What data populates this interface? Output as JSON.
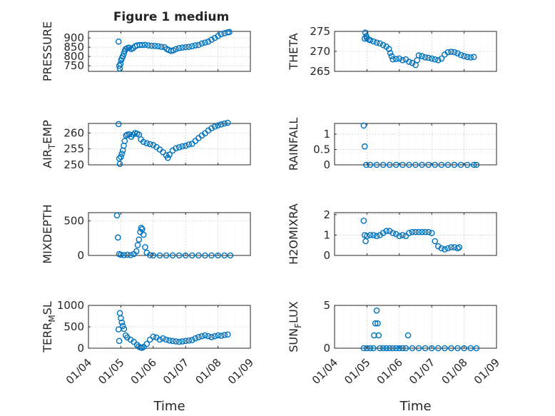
{
  "figure": {
    "title": "Figure 1 medium"
  },
  "chart_data": [
    {
      "type": "scatter",
      "id": "pressure",
      "ylabel": "PRESSURE",
      "xlabel": "",
      "yticks": [
        750,
        800,
        850,
        900
      ],
      "ylim": [
        720,
        935
      ],
      "xlim": [
        0,
        5
      ],
      "xticks": [
        0,
        1,
        2,
        3,
        4,
        5
      ],
      "points": [
        [
          0.93,
          880
        ],
        [
          0.95,
          750
        ],
        [
          0.97,
          735
        ],
        [
          0.99,
          760
        ],
        [
          1.01,
          780
        ],
        [
          1.03,
          790
        ],
        [
          1.06,
          800
        ],
        [
          1.09,
          815
        ],
        [
          1.12,
          830
        ],
        [
          1.15,
          840
        ],
        [
          1.2,
          845
        ],
        [
          1.26,
          848
        ],
        [
          1.32,
          840
        ],
        [
          1.38,
          845
        ],
        [
          1.44,
          855
        ],
        [
          1.5,
          860
        ],
        [
          1.58,
          862
        ],
        [
          1.66,
          862
        ],
        [
          1.75,
          863
        ],
        [
          1.85,
          860
        ],
        [
          1.95,
          858
        ],
        [
          2.05,
          857
        ],
        [
          2.15,
          855
        ],
        [
          2.25,
          852
        ],
        [
          2.35,
          850
        ],
        [
          2.42,
          840
        ],
        [
          2.48,
          835
        ],
        [
          2.55,
          830
        ],
        [
          2.62,
          833
        ],
        [
          2.7,
          840
        ],
        [
          2.8,
          845
        ],
        [
          2.9,
          848
        ],
        [
          3.0,
          850
        ],
        [
          3.1,
          852
        ],
        [
          3.2,
          855
        ],
        [
          3.3,
          860
        ],
        [
          3.4,
          862
        ],
        [
          3.5,
          870
        ],
        [
          3.6,
          875
        ],
        [
          3.7,
          880
        ],
        [
          3.8,
          890
        ],
        [
          3.9,
          900
        ],
        [
          4.0,
          910
        ],
        [
          4.1,
          920
        ],
        [
          4.2,
          925
        ],
        [
          4.3,
          930
        ],
        [
          4.35,
          932
        ]
      ]
    },
    {
      "type": "scatter",
      "id": "theta",
      "ylabel": "THETA",
      "xlabel": "",
      "yticks": [
        265,
        270,
        275
      ],
      "ylim": [
        265,
        275
      ],
      "xlim": [
        0,
        5
      ],
      "xticks": [
        0,
        1,
        2,
        3,
        4,
        5
      ],
      "points": [
        [
          0.93,
          273.2
        ],
        [
          0.95,
          274.7
        ],
        [
          0.98,
          273.8
        ],
        [
          1.0,
          273.3
        ],
        [
          1.05,
          273.0
        ],
        [
          1.1,
          272.8
        ],
        [
          1.2,
          272.5
        ],
        [
          1.3,
          272.2
        ],
        [
          1.4,
          272.0
        ],
        [
          1.5,
          271.6
        ],
        [
          1.6,
          271.2
        ],
        [
          1.68,
          270.6
        ],
        [
          1.72,
          269.6
        ],
        [
          1.76,
          268.8
        ],
        [
          1.8,
          268.0
        ],
        [
          1.9,
          268.1
        ],
        [
          2.0,
          268.2
        ],
        [
          2.1,
          267.8
        ],
        [
          2.2,
          268.0
        ],
        [
          2.3,
          267.4
        ],
        [
          2.4,
          267.1
        ],
        [
          2.5,
          266.6
        ],
        [
          2.55,
          267.8
        ],
        [
          2.6,
          269.0
        ],
        [
          2.7,
          268.8
        ],
        [
          2.8,
          268.5
        ],
        [
          2.9,
          268.4
        ],
        [
          3.0,
          268.2
        ],
        [
          3.1,
          268.0
        ],
        [
          3.2,
          267.8
        ],
        [
          3.3,
          268.2
        ],
        [
          3.4,
          269.2
        ],
        [
          3.5,
          269.8
        ],
        [
          3.6,
          269.9
        ],
        [
          3.7,
          269.8
        ],
        [
          3.8,
          269.5
        ],
        [
          3.9,
          269.1
        ],
        [
          4.0,
          268.8
        ],
        [
          4.1,
          268.6
        ],
        [
          4.2,
          268.5
        ],
        [
          4.3,
          268.6
        ]
      ]
    },
    {
      "type": "scatter",
      "id": "air_temp",
      "ylabel": "AIR_TEMP",
      "ylabel_main": "AIR",
      "ylabel_sub": "T",
      "ylabel_tail": "EMP",
      "xlabel": "",
      "yticks": [
        250,
        255,
        260
      ],
      "ylim": [
        250,
        263
      ],
      "xlim": [
        0,
        5
      ],
      "xticks": [
        0,
        1,
        2,
        3,
        4,
        5
      ],
      "points": [
        [
          0.93,
          262.8
        ],
        [
          0.95,
          252.0
        ],
        [
          0.97,
          250.3
        ],
        [
          1.0,
          252.5
        ],
        [
          1.03,
          253.5
        ],
        [
          1.06,
          254.5
        ],
        [
          1.09,
          256.0
        ],
        [
          1.12,
          257.5
        ],
        [
          1.16,
          259.2
        ],
        [
          1.2,
          259.5
        ],
        [
          1.26,
          259.6
        ],
        [
          1.32,
          258.8
        ],
        [
          1.38,
          259.5
        ],
        [
          1.44,
          260.0
        ],
        [
          1.5,
          259.8
        ],
        [
          1.56,
          259.5
        ],
        [
          1.62,
          258.0
        ],
        [
          1.7,
          257.2
        ],
        [
          1.8,
          256.8
        ],
        [
          1.9,
          256.5
        ],
        [
          2.0,
          256.2
        ],
        [
          2.1,
          255.6
        ],
        [
          2.2,
          254.8
        ],
        [
          2.3,
          254.0
        ],
        [
          2.4,
          253.0
        ],
        [
          2.45,
          252.2
        ],
        [
          2.5,
          253.2
        ],
        [
          2.6,
          254.5
        ],
        [
          2.7,
          255.2
        ],
        [
          2.8,
          255.5
        ],
        [
          2.9,
          255.8
        ],
        [
          3.0,
          256.0
        ],
        [
          3.1,
          256.4
        ],
        [
          3.2,
          256.6
        ],
        [
          3.3,
          257.5
        ],
        [
          3.4,
          258.4
        ],
        [
          3.5,
          259.2
        ],
        [
          3.6,
          259.9
        ],
        [
          3.7,
          260.8
        ],
        [
          3.8,
          261.5
        ],
        [
          3.9,
          262.0
        ],
        [
          4.0,
          262.4
        ],
        [
          4.1,
          262.7
        ],
        [
          4.2,
          263.0
        ],
        [
          4.3,
          263.2
        ]
      ]
    },
    {
      "type": "scatter",
      "id": "rainfall",
      "ylabel": "RAINFALL",
      "xlabel": "",
      "yticks": [
        0,
        0.5,
        1
      ],
      "ylim": [
        0,
        1.35
      ],
      "xlim": [
        0,
        5
      ],
      "xticks": [
        0,
        1,
        2,
        3,
        4,
        5
      ],
      "points": [
        [
          0.9,
          1.28
        ],
        [
          0.93,
          0.6
        ],
        [
          0.98,
          0
        ],
        [
          1.1,
          0
        ],
        [
          1.3,
          0
        ],
        [
          1.5,
          0
        ],
        [
          1.7,
          0
        ],
        [
          1.9,
          0
        ],
        [
          2.1,
          0
        ],
        [
          2.3,
          0
        ],
        [
          2.5,
          0
        ],
        [
          2.7,
          0
        ],
        [
          2.9,
          0
        ],
        [
          3.1,
          0
        ],
        [
          3.3,
          0
        ],
        [
          3.5,
          0
        ],
        [
          3.7,
          0
        ],
        [
          3.9,
          0
        ],
        [
          4.1,
          0
        ],
        [
          4.3,
          0
        ],
        [
          4.38,
          0
        ]
      ]
    },
    {
      "type": "scatter",
      "id": "mixdepth",
      "ylabel": "MIXDEPTH",
      "xlabel": "",
      "yticks": [
        0,
        500
      ],
      "ylim": [
        0,
        620
      ],
      "xlim": [
        0,
        5
      ],
      "xticks": [
        0,
        1,
        2,
        3,
        4,
        5
      ],
      "points": [
        [
          0.88,
          580
        ],
        [
          0.91,
          260
        ],
        [
          0.95,
          20
        ],
        [
          1.0,
          10
        ],
        [
          1.1,
          5
        ],
        [
          1.2,
          10
        ],
        [
          1.3,
          5
        ],
        [
          1.4,
          20
        ],
        [
          1.48,
          60
        ],
        [
          1.52,
          150
        ],
        [
          1.56,
          230
        ],
        [
          1.6,
          340
        ],
        [
          1.63,
          400
        ],
        [
          1.66,
          380
        ],
        [
          1.7,
          300
        ],
        [
          1.75,
          120
        ],
        [
          1.8,
          40
        ],
        [
          1.9,
          5
        ],
        [
          2.0,
          0
        ],
        [
          2.2,
          0
        ],
        [
          2.4,
          0
        ],
        [
          2.6,
          0
        ],
        [
          2.8,
          0
        ],
        [
          3.0,
          0
        ],
        [
          3.2,
          0
        ],
        [
          3.4,
          0
        ],
        [
          3.6,
          0
        ],
        [
          3.8,
          0
        ],
        [
          4.0,
          0
        ],
        [
          4.2,
          0
        ],
        [
          4.38,
          0
        ]
      ]
    },
    {
      "type": "scatter",
      "id": "h2omixra",
      "ylabel": "H2OMIXRA",
      "xlabel": "",
      "yticks": [
        0,
        1,
        2
      ],
      "ylim": [
        0,
        2.1
      ],
      "xlim": [
        0,
        5
      ],
      "xticks": [
        0,
        1,
        2,
        3,
        4,
        5
      ],
      "points": [
        [
          0.9,
          1.7
        ],
        [
          0.93,
          1.0
        ],
        [
          0.96,
          0.7
        ],
        [
          1.0,
          0.95
        ],
        [
          1.1,
          1.0
        ],
        [
          1.2,
          1.0
        ],
        [
          1.3,
          0.95
        ],
        [
          1.4,
          1.0
        ],
        [
          1.5,
          1.1
        ],
        [
          1.6,
          1.2
        ],
        [
          1.7,
          1.2
        ],
        [
          1.8,
          1.1
        ],
        [
          1.9,
          1.05
        ],
        [
          2.0,
          0.95
        ],
        [
          2.1,
          1.0
        ],
        [
          2.2,
          0.95
        ],
        [
          2.3,
          1.1
        ],
        [
          2.4,
          1.15
        ],
        [
          2.5,
          1.15
        ],
        [
          2.6,
          1.15
        ],
        [
          2.7,
          1.15
        ],
        [
          2.8,
          1.15
        ],
        [
          2.9,
          1.15
        ],
        [
          3.0,
          1.1
        ],
        [
          3.1,
          0.7
        ],
        [
          3.2,
          0.45
        ],
        [
          3.3,
          0.35
        ],
        [
          3.4,
          0.3
        ],
        [
          3.5,
          0.35
        ],
        [
          3.6,
          0.4
        ],
        [
          3.7,
          0.4
        ],
        [
          3.8,
          0.35
        ],
        [
          3.85,
          0.4
        ]
      ]
    },
    {
      "type": "scatter",
      "id": "terr_msl",
      "ylabel": "TERR_MSL",
      "ylabel_main": "TERR",
      "ylabel_sub": "M",
      "ylabel_tail": "SL",
      "xlabel": "Time",
      "yticks": [
        0,
        500,
        1000
      ],
      "ylim": [
        0,
        1000
      ],
      "xlim": [
        0,
        5
      ],
      "xticks": [
        0,
        1,
        2,
        3,
        4,
        5
      ],
      "xticklabels": [
        "01/04",
        "01/05",
        "01/06",
        "01/07",
        "01/08",
        "01/09"
      ],
      "points": [
        [
          0.93,
          440
        ],
        [
          0.95,
          170
        ],
        [
          0.97,
          820
        ],
        [
          1.0,
          700
        ],
        [
          1.03,
          600
        ],
        [
          1.06,
          520
        ],
        [
          1.1,
          450
        ],
        [
          1.15,
          300
        ],
        [
          1.2,
          250
        ],
        [
          1.3,
          200
        ],
        [
          1.4,
          150
        ],
        [
          1.5,
          80
        ],
        [
          1.55,
          40
        ],
        [
          1.6,
          20
        ],
        [
          1.65,
          10
        ],
        [
          1.7,
          30
        ],
        [
          1.8,
          100
        ],
        [
          1.9,
          200
        ],
        [
          2.0,
          270
        ],
        [
          2.1,
          250
        ],
        [
          2.2,
          200
        ],
        [
          2.3,
          230
        ],
        [
          2.4,
          200
        ],
        [
          2.5,
          180
        ],
        [
          2.6,
          170
        ],
        [
          2.7,
          160
        ],
        [
          2.8,
          150
        ],
        [
          2.9,
          160
        ],
        [
          3.0,
          170
        ],
        [
          3.1,
          180
        ],
        [
          3.2,
          190
        ],
        [
          3.3,
          230
        ],
        [
          3.4,
          260
        ],
        [
          3.5,
          280
        ],
        [
          3.6,
          300
        ],
        [
          3.7,
          280
        ],
        [
          3.8,
          260
        ],
        [
          3.9,
          280
        ],
        [
          4.0,
          300
        ],
        [
          4.1,
          290
        ],
        [
          4.2,
          310
        ],
        [
          4.3,
          320
        ]
      ]
    },
    {
      "type": "scatter",
      "id": "sun_flux",
      "ylabel": "SUN_FLUX",
      "ylabel_main": "SUN",
      "ylabel_sub": "F",
      "ylabel_tail": "LUX",
      "xlabel": "Time",
      "yticks": [
        0,
        5
      ],
      "ylim": [
        0,
        5
      ],
      "xlim": [
        0,
        5
      ],
      "xticks": [
        0,
        1,
        2,
        3,
        4,
        5
      ],
      "xticklabels": [
        "01/04",
        "01/05",
        "01/06",
        "01/07",
        "01/08",
        "01/09"
      ],
      "points": [
        [
          0.9,
          0
        ],
        [
          1.0,
          0
        ],
        [
          1.1,
          0
        ],
        [
          1.2,
          0
        ],
        [
          1.22,
          1.5
        ],
        [
          1.26,
          2.9
        ],
        [
          1.3,
          4.4
        ],
        [
          1.33,
          2.9
        ],
        [
          1.36,
          1.5
        ],
        [
          1.4,
          0
        ],
        [
          1.5,
          0
        ],
        [
          1.6,
          0
        ],
        [
          1.7,
          0
        ],
        [
          1.8,
          0
        ],
        [
          1.9,
          0
        ],
        [
          2.0,
          0
        ],
        [
          2.1,
          0
        ],
        [
          2.2,
          0
        ],
        [
          2.27,
          1.5
        ],
        [
          2.4,
          0
        ],
        [
          2.6,
          0
        ],
        [
          2.8,
          0
        ],
        [
          3.0,
          0
        ],
        [
          3.2,
          0
        ],
        [
          3.4,
          0
        ],
        [
          3.6,
          0
        ],
        [
          3.8,
          0
        ],
        [
          4.0,
          0
        ],
        [
          4.2,
          0
        ],
        [
          4.38,
          0
        ]
      ]
    }
  ]
}
